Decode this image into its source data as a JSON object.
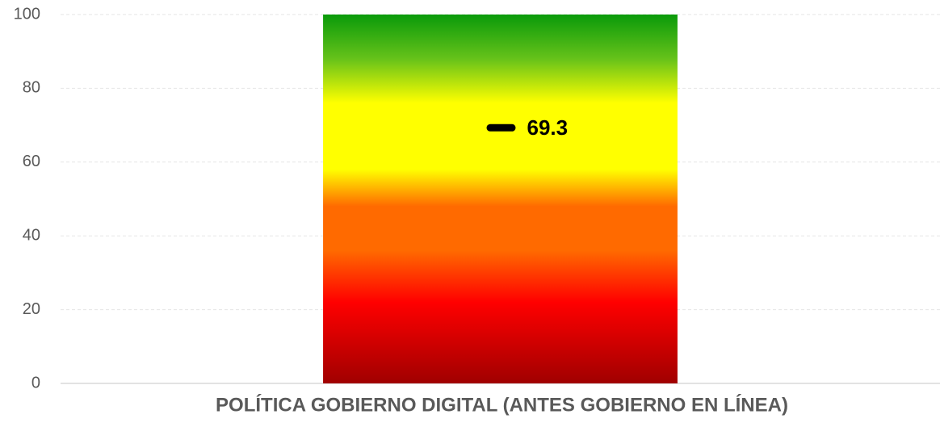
{
  "chart_data": {
    "type": "bar",
    "categories": [
      "POLÍTICA GOBIERNO DIGITAL (ANTES GOBIERNO EN LÍNEA)"
    ],
    "values": [
      69.3
    ],
    "color": "#000000",
    "ylim": [
      0,
      100
    ],
    "yticks": [
      0,
      20,
      40,
      60,
      80,
      100
    ],
    "grid": true
  }
}
